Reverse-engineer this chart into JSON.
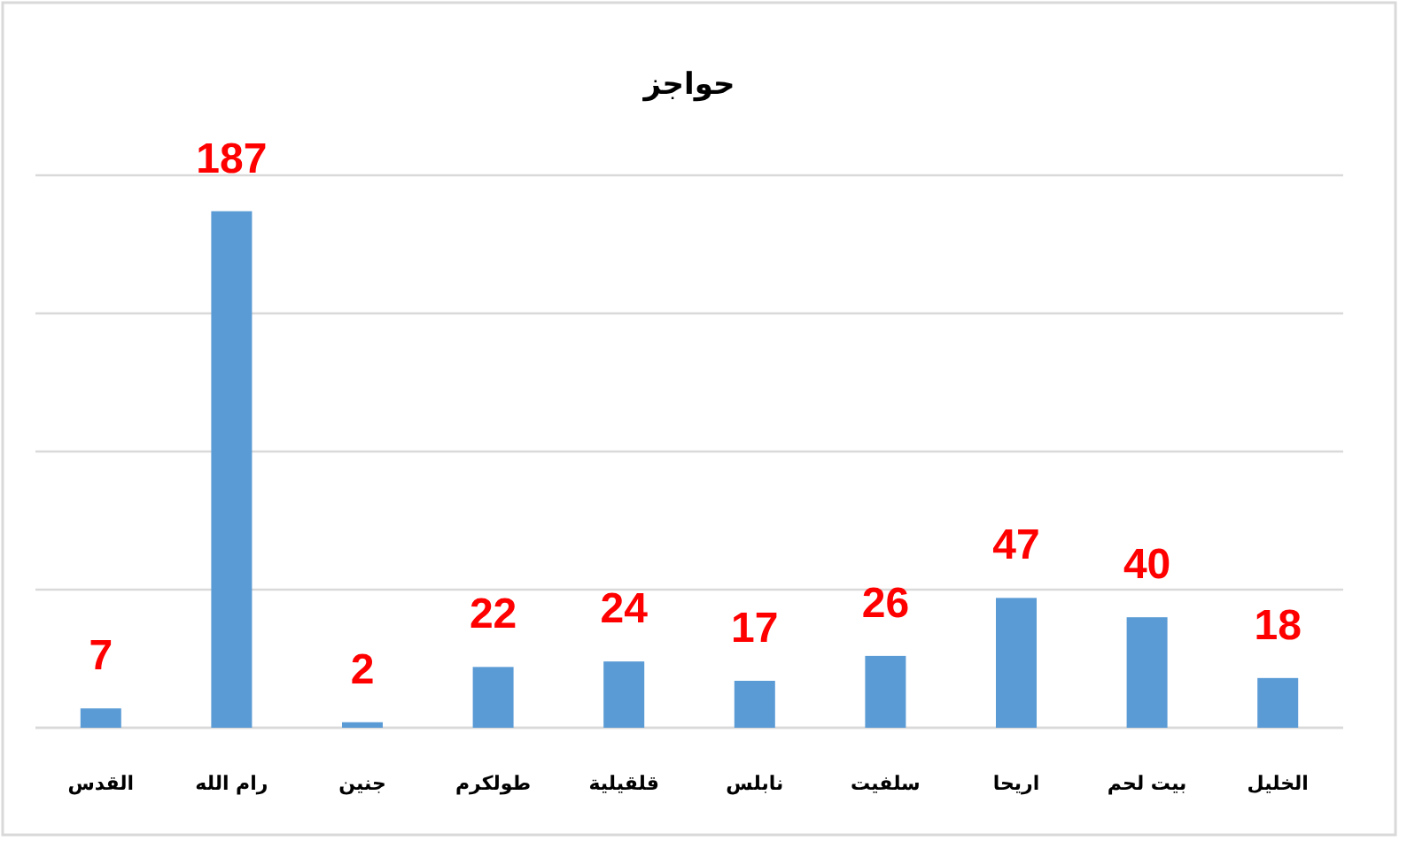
{
  "chart_data": {
    "type": "bar",
    "title": "حواجز",
    "categories": [
      "القدس",
      "رام الله",
      "جنين",
      "طولكرم",
      "قلقيلية",
      "نابلس",
      "سلفيت",
      "اريحا",
      "بيت لحم",
      "الخليل"
    ],
    "values": [
      7,
      187,
      2,
      22,
      24,
      17,
      26,
      47,
      40,
      18
    ],
    "color": "#5b9bd5",
    "data_labels": true,
    "ylim": [
      0,
      200
    ],
    "yticks": [
      {
        "value": 0,
        "label": null
      },
      {
        "value": 50,
        "label": null
      },
      {
        "value": 100,
        "label": null
      },
      {
        "value": 150,
        "label": null
      },
      {
        "value": 200,
        "label": null
      }
    ],
    "grid": "y",
    "tick_labels": "x"
  }
}
